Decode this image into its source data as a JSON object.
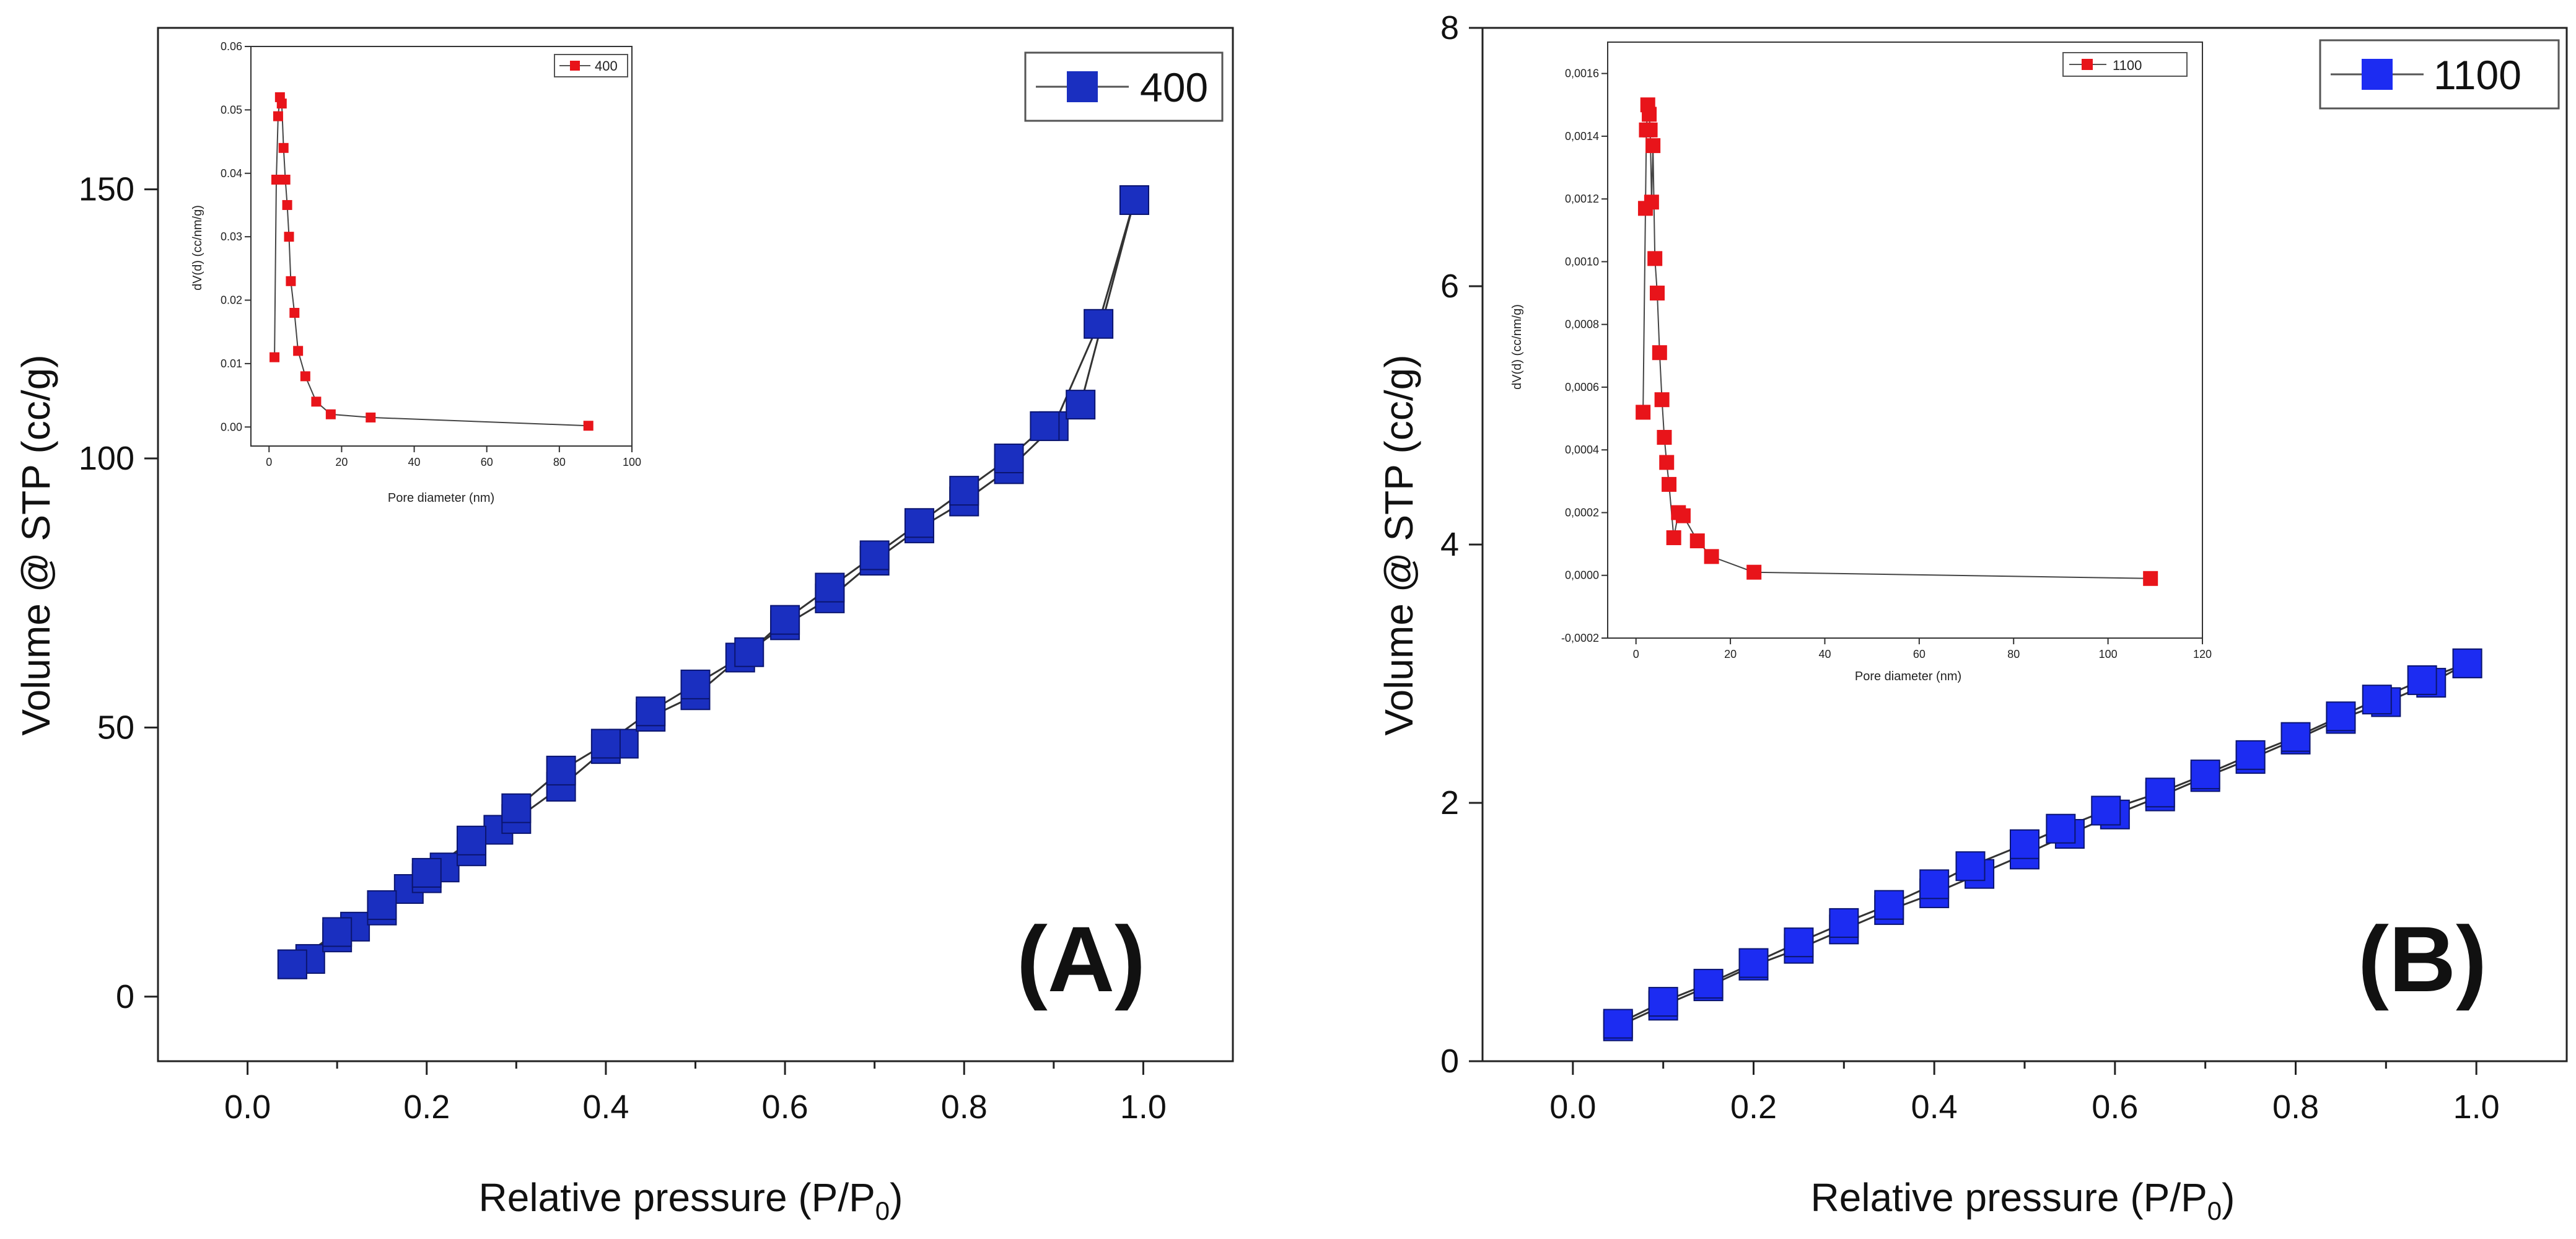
{
  "chart_data": [
    {
      "panel": "(A)",
      "type": "scatter",
      "xlabel": "Relative pressure (P/P0)",
      "xlabel_main": "Relative pressure (P/P",
      "xlabel_sub": "0",
      "xlabel_close": ")",
      "ylabel": "Volume @ STP (cc/g)",
      "xlim": [
        -0.1,
        1.1
      ],
      "ylim": [
        -12,
        180
      ],
      "xticks": [
        "0.0",
        "0.2",
        "0.4",
        "0.6",
        "0.8",
        "1.0"
      ],
      "yticks": [
        "0",
        "50",
        "100",
        "150"
      ],
      "legend": "400",
      "marker_color": "#1a2fc0",
      "series": [
        {
          "name": "400",
          "role": "adsorption",
          "x": [
            0.05,
            0.07,
            0.1,
            0.12,
            0.15,
            0.18,
            0.2,
            0.22,
            0.25,
            0.28,
            0.3,
            0.35,
            0.4,
            0.42,
            0.45,
            0.5,
            0.55,
            0.6,
            0.65,
            0.7,
            0.75,
            0.8,
            0.85,
            0.9,
            0.95,
            0.99
          ],
          "y": [
            6,
            7,
            11,
            13,
            16,
            20,
            22,
            24,
            27,
            31,
            33,
            39,
            46,
            47,
            52,
            56,
            63,
            69,
            74,
            81,
            87,
            92,
            98,
            106,
            125,
            148
          ]
        },
        {
          "name": "400",
          "role": "desorption",
          "x": [
            0.99,
            0.93,
            0.89,
            0.85,
            0.8,
            0.75,
            0.7,
            0.65,
            0.6,
            0.56,
            0.5,
            0.45,
            0.4,
            0.35,
            0.3,
            0.25,
            0.2,
            0.15,
            0.1,
            0.05
          ],
          "y": [
            148,
            110,
            106,
            100,
            94,
            88,
            82,
            76,
            70,
            64,
            58,
            53,
            47,
            42,
            35,
            29,
            23,
            17,
            12,
            6
          ]
        }
      ],
      "inset": {
        "xlabel": "Pore diameter (nm)",
        "ylabel": "dV(d) (cc/nm/g)",
        "xlim": [
          -5,
          100
        ],
        "ylim": [
          -0.003,
          0.06
        ],
        "xticks": [
          "0",
          "20",
          "40",
          "60",
          "80",
          "100"
        ],
        "yticks": [
          "0.00",
          "0.01",
          "0.02",
          "0.03",
          "0.04",
          "0.05",
          "0.06"
        ],
        "legend": "400",
        "marker_color": "#e8141a",
        "series": {
          "x": [
            1.5,
            2.0,
            2.5,
            3.0,
            3.5,
            4.0,
            4.5,
            5.0,
            5.5,
            6.0,
            7.0,
            8.0,
            10.0,
            13.0,
            17.0,
            28.0,
            88.0
          ],
          "y": [
            0.011,
            0.039,
            0.049,
            0.052,
            0.051,
            0.044,
            0.039,
            0.035,
            0.03,
            0.023,
            0.018,
            0.012,
            0.008,
            0.004,
            0.002,
            0.0015,
            0.0002
          ]
        }
      }
    },
    {
      "panel": "(B)",
      "type": "scatter",
      "xlabel": "Relative pressure (P/P0)",
      "xlabel_main": "Relative pressure (P/P",
      "xlabel_sub": "0",
      "xlabel_close": ")",
      "ylabel": "Volume @ STP (cc/g)",
      "xlim": [
        -0.1,
        1.1
      ],
      "ylim": [
        0,
        8
      ],
      "xticks": [
        "0.0",
        "0.2",
        "0.4",
        "0.6",
        "0.8",
        "1.0"
      ],
      "yticks": [
        "0",
        "2",
        "4",
        "6",
        "8"
      ],
      "legend": "1100",
      "marker_color": "#1c2cf2",
      "series": [
        {
          "name": "1100",
          "role": "adsorption",
          "x": [
            0.05,
            0.1,
            0.15,
            0.2,
            0.25,
            0.3,
            0.35,
            0.4,
            0.45,
            0.5,
            0.55,
            0.6,
            0.65,
            0.7,
            0.75,
            0.8,
            0.85,
            0.9,
            0.95,
            0.99
          ],
          "y": [
            0.27,
            0.43,
            0.58,
            0.74,
            0.87,
            1.02,
            1.17,
            1.3,
            1.45,
            1.6,
            1.76,
            1.91,
            2.05,
            2.2,
            2.34,
            2.49,
            2.65,
            2.78,
            2.93,
            3.08
          ]
        },
        {
          "name": "1100",
          "role": "desorption",
          "x": [
            0.99,
            0.94,
            0.89,
            0.85,
            0.8,
            0.75,
            0.7,
            0.65,
            0.59,
            0.54,
            0.5,
            0.44,
            0.4,
            0.35,
            0.3,
            0.25,
            0.2,
            0.15,
            0.1,
            0.05
          ],
          "y": [
            3.08,
            2.95,
            2.8,
            2.67,
            2.51,
            2.37,
            2.22,
            2.08,
            1.94,
            1.8,
            1.68,
            1.51,
            1.37,
            1.21,
            1.07,
            0.92,
            0.76,
            0.6,
            0.46,
            0.29
          ]
        }
      ],
      "inset": {
        "xlabel": "Pore diameter (nm)",
        "ylabel": "dV(d) (cc/nm/g)",
        "xlim": [
          -6,
          120
        ],
        "ylim": [
          -0.0002,
          0.0017
        ],
        "xticks": [
          "0",
          "20",
          "40",
          "60",
          "80",
          "100",
          "120"
        ],
        "yticks": [
          "-0,0002",
          "0,0000",
          "0,0002",
          "0,0004",
          "0,0006",
          "0,0008",
          "0,0010",
          "0,0012",
          "0,0014",
          "0,0016"
        ],
        "legend": "1100",
        "marker_color": "#e8141a",
        "series": {
          "x": [
            1.5,
            2.0,
            2.2,
            2.5,
            2.8,
            3.0,
            3.3,
            3.6,
            4.0,
            4.5,
            5.0,
            5.5,
            6.0,
            6.5,
            7.0,
            8.0,
            9.0,
            10.0,
            13.0,
            16.0,
            25.0,
            109.0
          ],
          "y": [
            0.00052,
            0.00117,
            0.00142,
            0.0015,
            0.00147,
            0.00142,
            0.00119,
            0.00137,
            0.00101,
            0.0009,
            0.00071,
            0.00056,
            0.00044,
            0.00036,
            0.00029,
            0.00012,
            0.0002,
            0.00019,
            0.00011,
            6e-05,
            1e-05,
            -1e-05
          ]
        }
      }
    }
  ]
}
